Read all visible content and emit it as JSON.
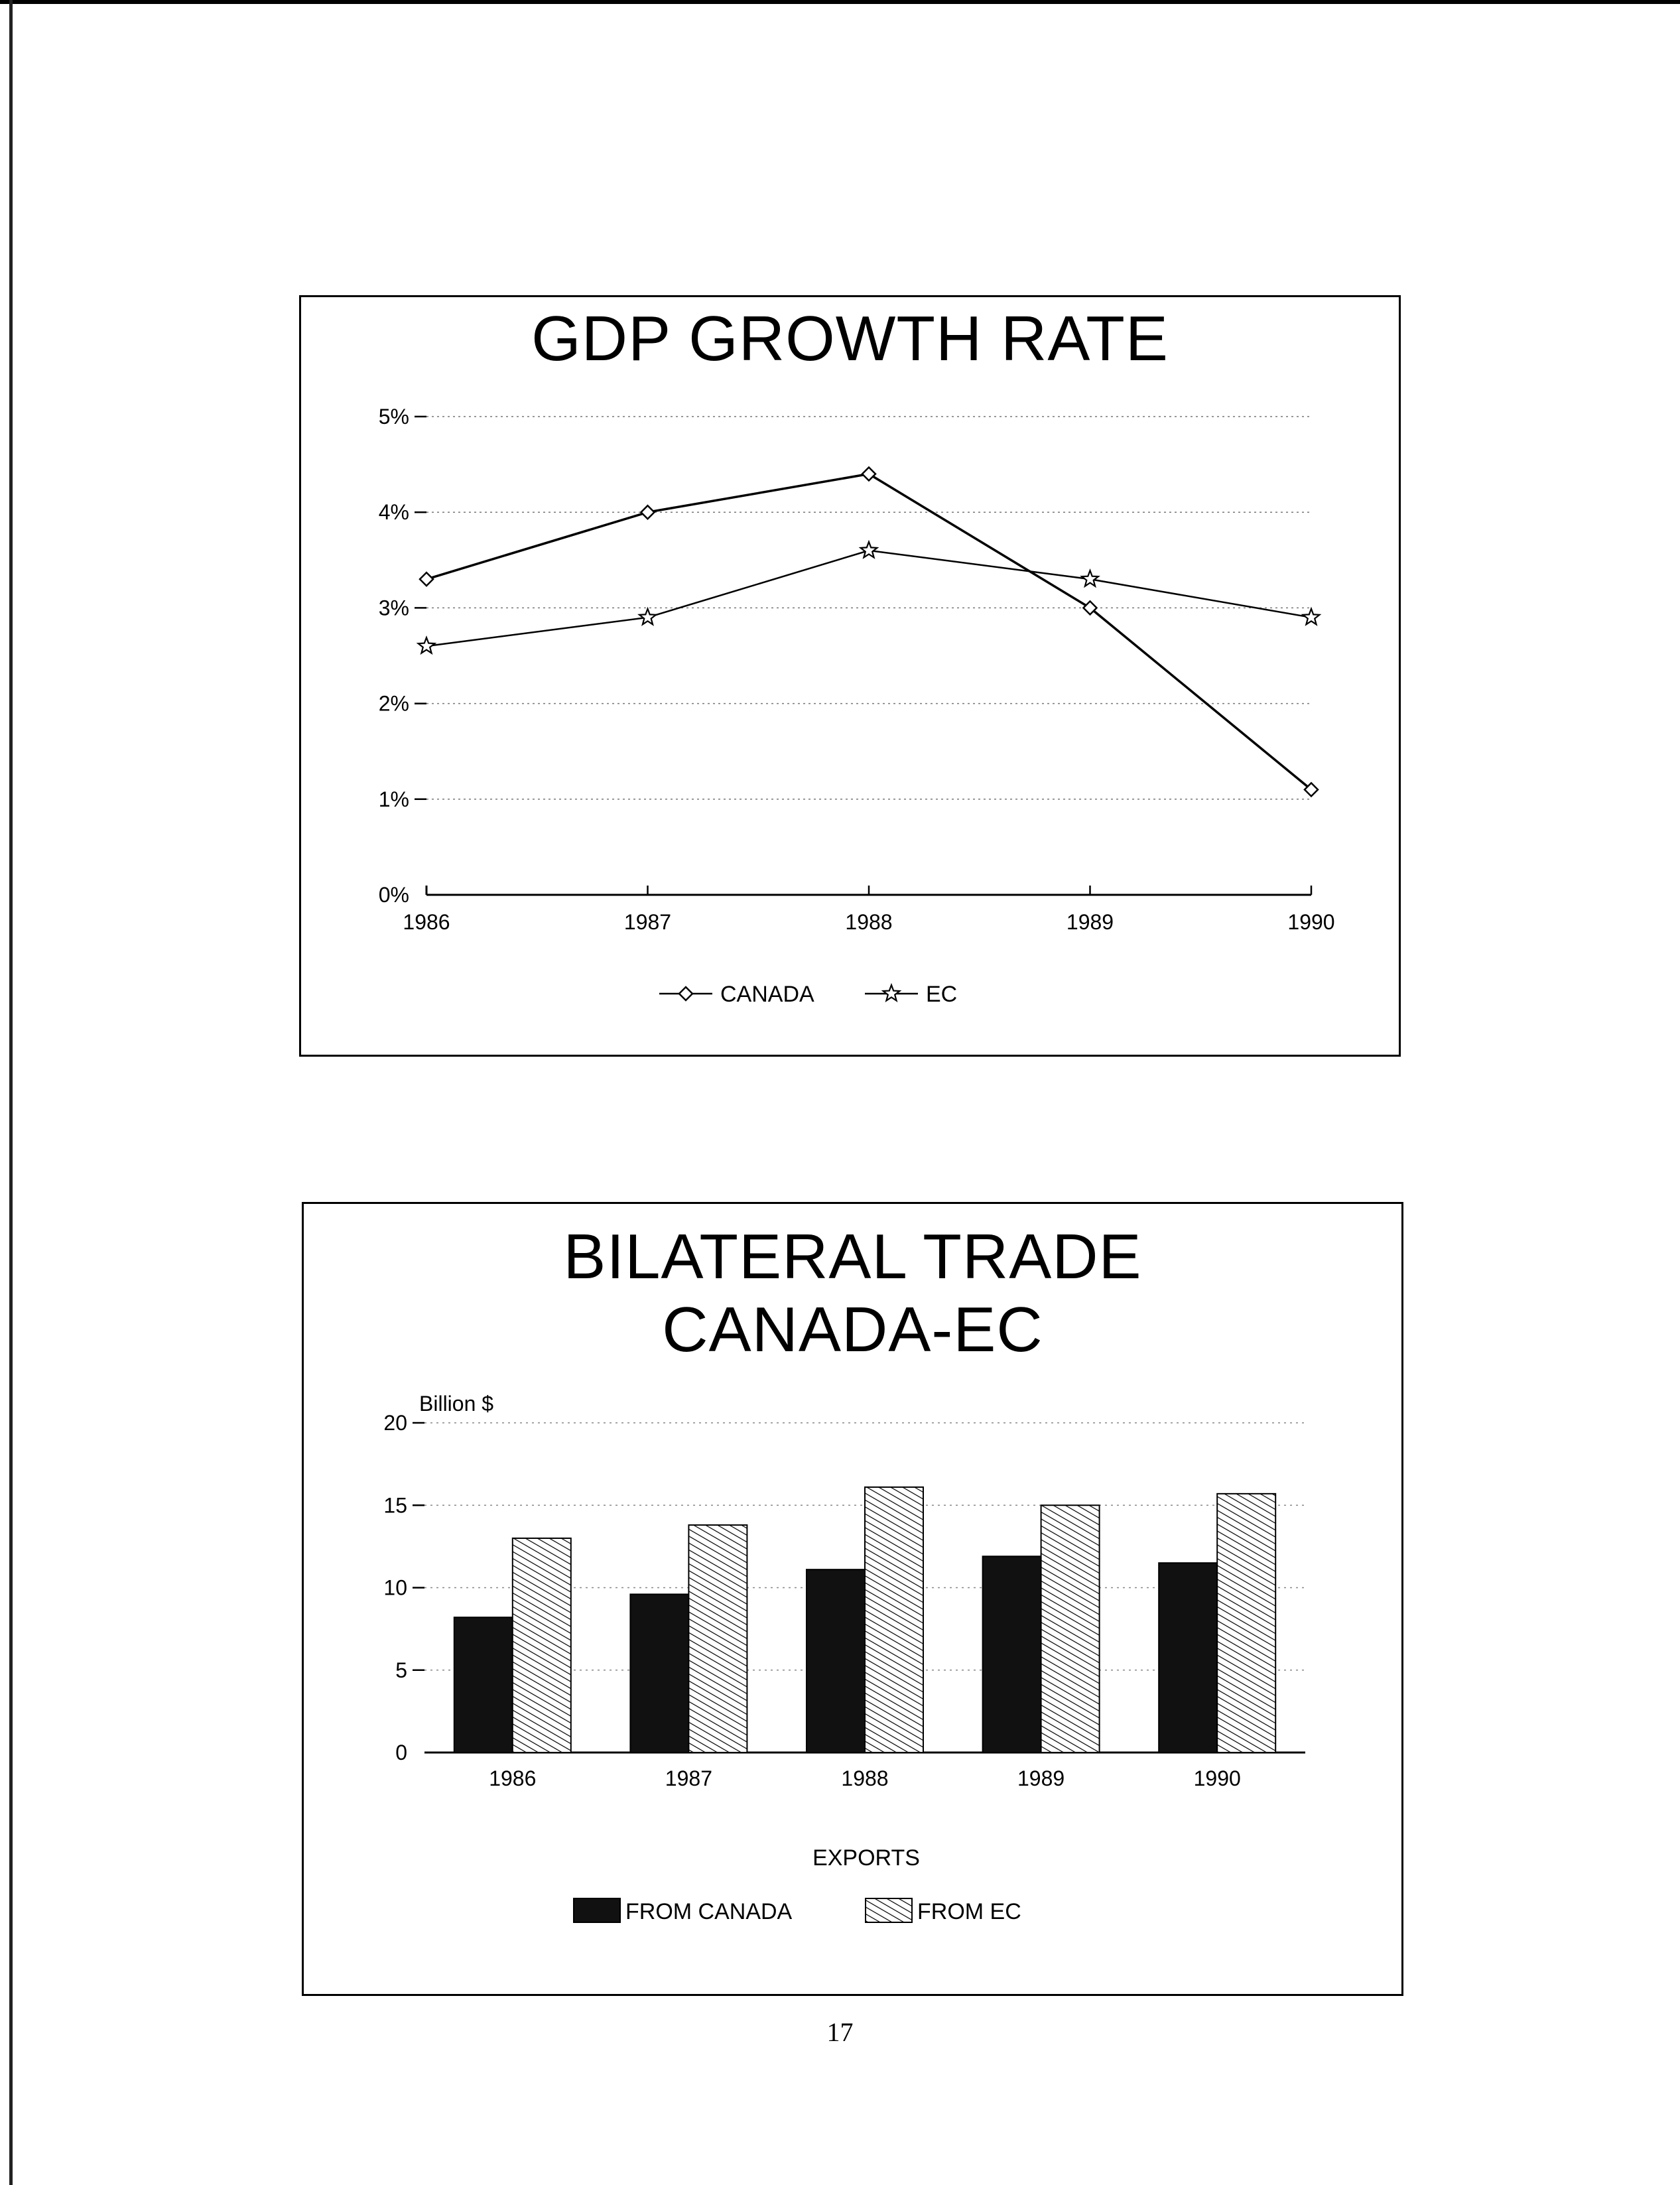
{
  "page_number": "17",
  "charts": [
    {
      "title": "GDP GROWTH RATE",
      "chart_data": {
        "type": "line",
        "title": "GDP GROWTH RATE",
        "x": [
          "1986",
          "1987",
          "1988",
          "1989",
          "1990"
        ],
        "y_ticks": [
          "0%",
          "1%",
          "2%",
          "3%",
          "4%",
          "5%"
        ],
        "ylim": [
          0,
          5
        ],
        "grid": true,
        "legend_position": "bottom",
        "series": [
          {
            "name": "CANADA",
            "marker": "diamond",
            "values": [
              3.3,
              4.0,
              4.4,
              3.0,
              1.1
            ]
          },
          {
            "name": "EC",
            "marker": "star",
            "values": [
              2.6,
              2.9,
              3.6,
              3.3,
              2.9
            ]
          }
        ]
      }
    },
    {
      "title_lines": [
        "BILATERAL TRADE",
        "CANADA-EC"
      ],
      "chart_data": {
        "type": "bar",
        "title": "BILATERAL TRADE CANADA-EC",
        "ylabel": "Billion $",
        "categories": [
          "1986",
          "1987",
          "1988",
          "1989",
          "1990"
        ],
        "y_ticks": [
          "0",
          "5",
          "10",
          "15",
          "20"
        ],
        "ylim": [
          0,
          20
        ],
        "grid": true,
        "legend_title": "EXPORTS",
        "legend_position": "bottom",
        "series": [
          {
            "name": "FROM CANADA",
            "fill": "solid-black",
            "values": [
              8.2,
              9.6,
              11.1,
              11.9,
              11.5
            ]
          },
          {
            "name": "FROM EC",
            "fill": "diagonal-hatch",
            "values": [
              13.0,
              13.8,
              16.1,
              15.0,
              15.7
            ]
          }
        ]
      }
    }
  ]
}
